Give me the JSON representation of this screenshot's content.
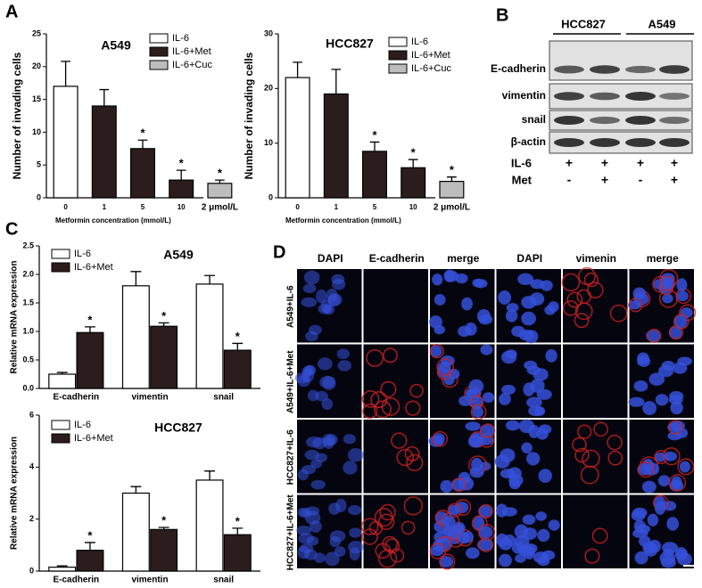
{
  "panels": [
    "A",
    "B",
    "C",
    "D"
  ],
  "chart_data": [
    {
      "type": "bar",
      "title": "A549",
      "ylabel": "Number of invading cells",
      "xlabel": "Metformin concentration (mmol/L)",
      "categories": [
        "0",
        "1",
        "5",
        "10",
        "2 μmol/L"
      ],
      "series": [
        {
          "name": "IL-6",
          "color": "#ffffff",
          "values": [
            17,
            null,
            null,
            null,
            null
          ],
          "errors": [
            3.8,
            null,
            null,
            null,
            null
          ],
          "significance": [
            null,
            null,
            null,
            null,
            null
          ]
        },
        {
          "name": "IL-6+Met",
          "color": "#2b1d1d",
          "values": [
            null,
            14,
            7.5,
            2.7,
            null
          ],
          "errors": [
            null,
            2.5,
            1.3,
            1.5,
            null
          ],
          "significance": [
            null,
            null,
            "*",
            "*",
            null
          ]
        },
        {
          "name": "IL-6+Cuc",
          "color": "#bdbdbd",
          "values": [
            null,
            null,
            null,
            null,
            2.2
          ],
          "errors": [
            null,
            null,
            null,
            null,
            0.5
          ],
          "significance": [
            null,
            null,
            null,
            null,
            "*"
          ]
        }
      ],
      "ylim": [
        0,
        25
      ],
      "yticks": [
        0,
        5,
        10,
        15,
        20,
        25
      ]
    },
    {
      "type": "bar",
      "title": "HCC827",
      "ylabel": "Number of invading cells",
      "xlabel": "Metformin concentration (mmol/L)",
      "categories": [
        "0",
        "1",
        "5",
        "10",
        "2 μmol/L"
      ],
      "series": [
        {
          "name": "IL-6",
          "color": "#ffffff",
          "values": [
            22,
            null,
            null,
            null,
            null
          ],
          "errors": [
            2.8,
            null,
            null,
            null,
            null
          ],
          "significance": [
            null,
            null,
            null,
            null,
            null
          ]
        },
        {
          "name": "IL-6+Met",
          "color": "#2b1d1d",
          "values": [
            null,
            19,
            8.5,
            5.5,
            null
          ],
          "errors": [
            null,
            4.5,
            1.7,
            1.5,
            null
          ],
          "significance": [
            null,
            null,
            "*",
            "*",
            null
          ]
        },
        {
          "name": "IL-6+Cuc",
          "color": "#bdbdbd",
          "values": [
            null,
            null,
            null,
            null,
            3.0
          ],
          "errors": [
            null,
            null,
            null,
            null,
            0.8
          ],
          "significance": [
            null,
            null,
            null,
            null,
            "*"
          ]
        }
      ],
      "ylim": [
        0,
        30
      ],
      "yticks": [
        0,
        10,
        20,
        30
      ]
    },
    {
      "type": "bar",
      "title": "A549",
      "ylabel": "Relative mRNA expression",
      "categories": [
        "E-cadherin",
        "vimentin",
        "snail"
      ],
      "series": [
        {
          "name": "IL-6",
          "color": "#ffffff",
          "values": [
            0.25,
            1.8,
            1.83
          ],
          "errors": [
            0.03,
            0.25,
            0.15
          ],
          "significance": [
            null,
            null,
            null
          ]
        },
        {
          "name": "IL-6+Met",
          "color": "#2b1d1d",
          "values": [
            0.98,
            1.09,
            0.67
          ],
          "errors": [
            0.1,
            0.06,
            0.12
          ],
          "significance": [
            "*",
            "*",
            "*"
          ]
        }
      ],
      "ylim": [
        0,
        2.5
      ],
      "yticks": [
        {
          "value": 0,
          "label": "0.0"
        },
        0.5,
        {
          "value": 1,
          "label": "1.0"
        },
        1.5,
        {
          "value": 2,
          "label": "2.0"
        },
        2.5
      ]
    },
    {
      "type": "bar",
      "title": "HCC827",
      "ylabel": "Relative mRNA expression",
      "categories": [
        "E-cadherin",
        "vimentin",
        "snail"
      ],
      "series": [
        {
          "name": "IL-6",
          "color": "#ffffff",
          "values": [
            0.15,
            3.0,
            3.5
          ],
          "errors": [
            0.05,
            0.25,
            0.35
          ],
          "significance": [
            null,
            null,
            null
          ]
        },
        {
          "name": "IL-6+Met",
          "color": "#2b1d1d",
          "values": [
            0.8,
            1.6,
            1.4
          ],
          "errors": [
            0.3,
            0.08,
            0.25
          ],
          "significance": [
            "*",
            "*",
            "*"
          ]
        }
      ],
      "ylim": [
        0,
        6
      ],
      "yticks": [
        0,
        2,
        4,
        6
      ]
    }
  ],
  "blot": {
    "groups": [
      "HCC827",
      "A549"
    ],
    "rows": [
      "E-cadherin",
      "vimentin",
      "snail",
      "β-actin"
    ],
    "conditions": [
      {
        "name": "IL-6",
        "signs": [
          "+",
          "+",
          "+",
          "+"
        ]
      },
      {
        "name": "Met",
        "signs": [
          "-",
          "+",
          "-",
          "+"
        ]
      }
    ]
  },
  "microscopy": {
    "columns": [
      "DAPI",
      "E-cadherin",
      "merge",
      "DAPI",
      "vimenin",
      "merge"
    ],
    "rows": [
      "A549+IL-6",
      "A549+IL-6+Met",
      "HCC827+IL-6",
      "HCC827+IL-6+Met"
    ]
  }
}
